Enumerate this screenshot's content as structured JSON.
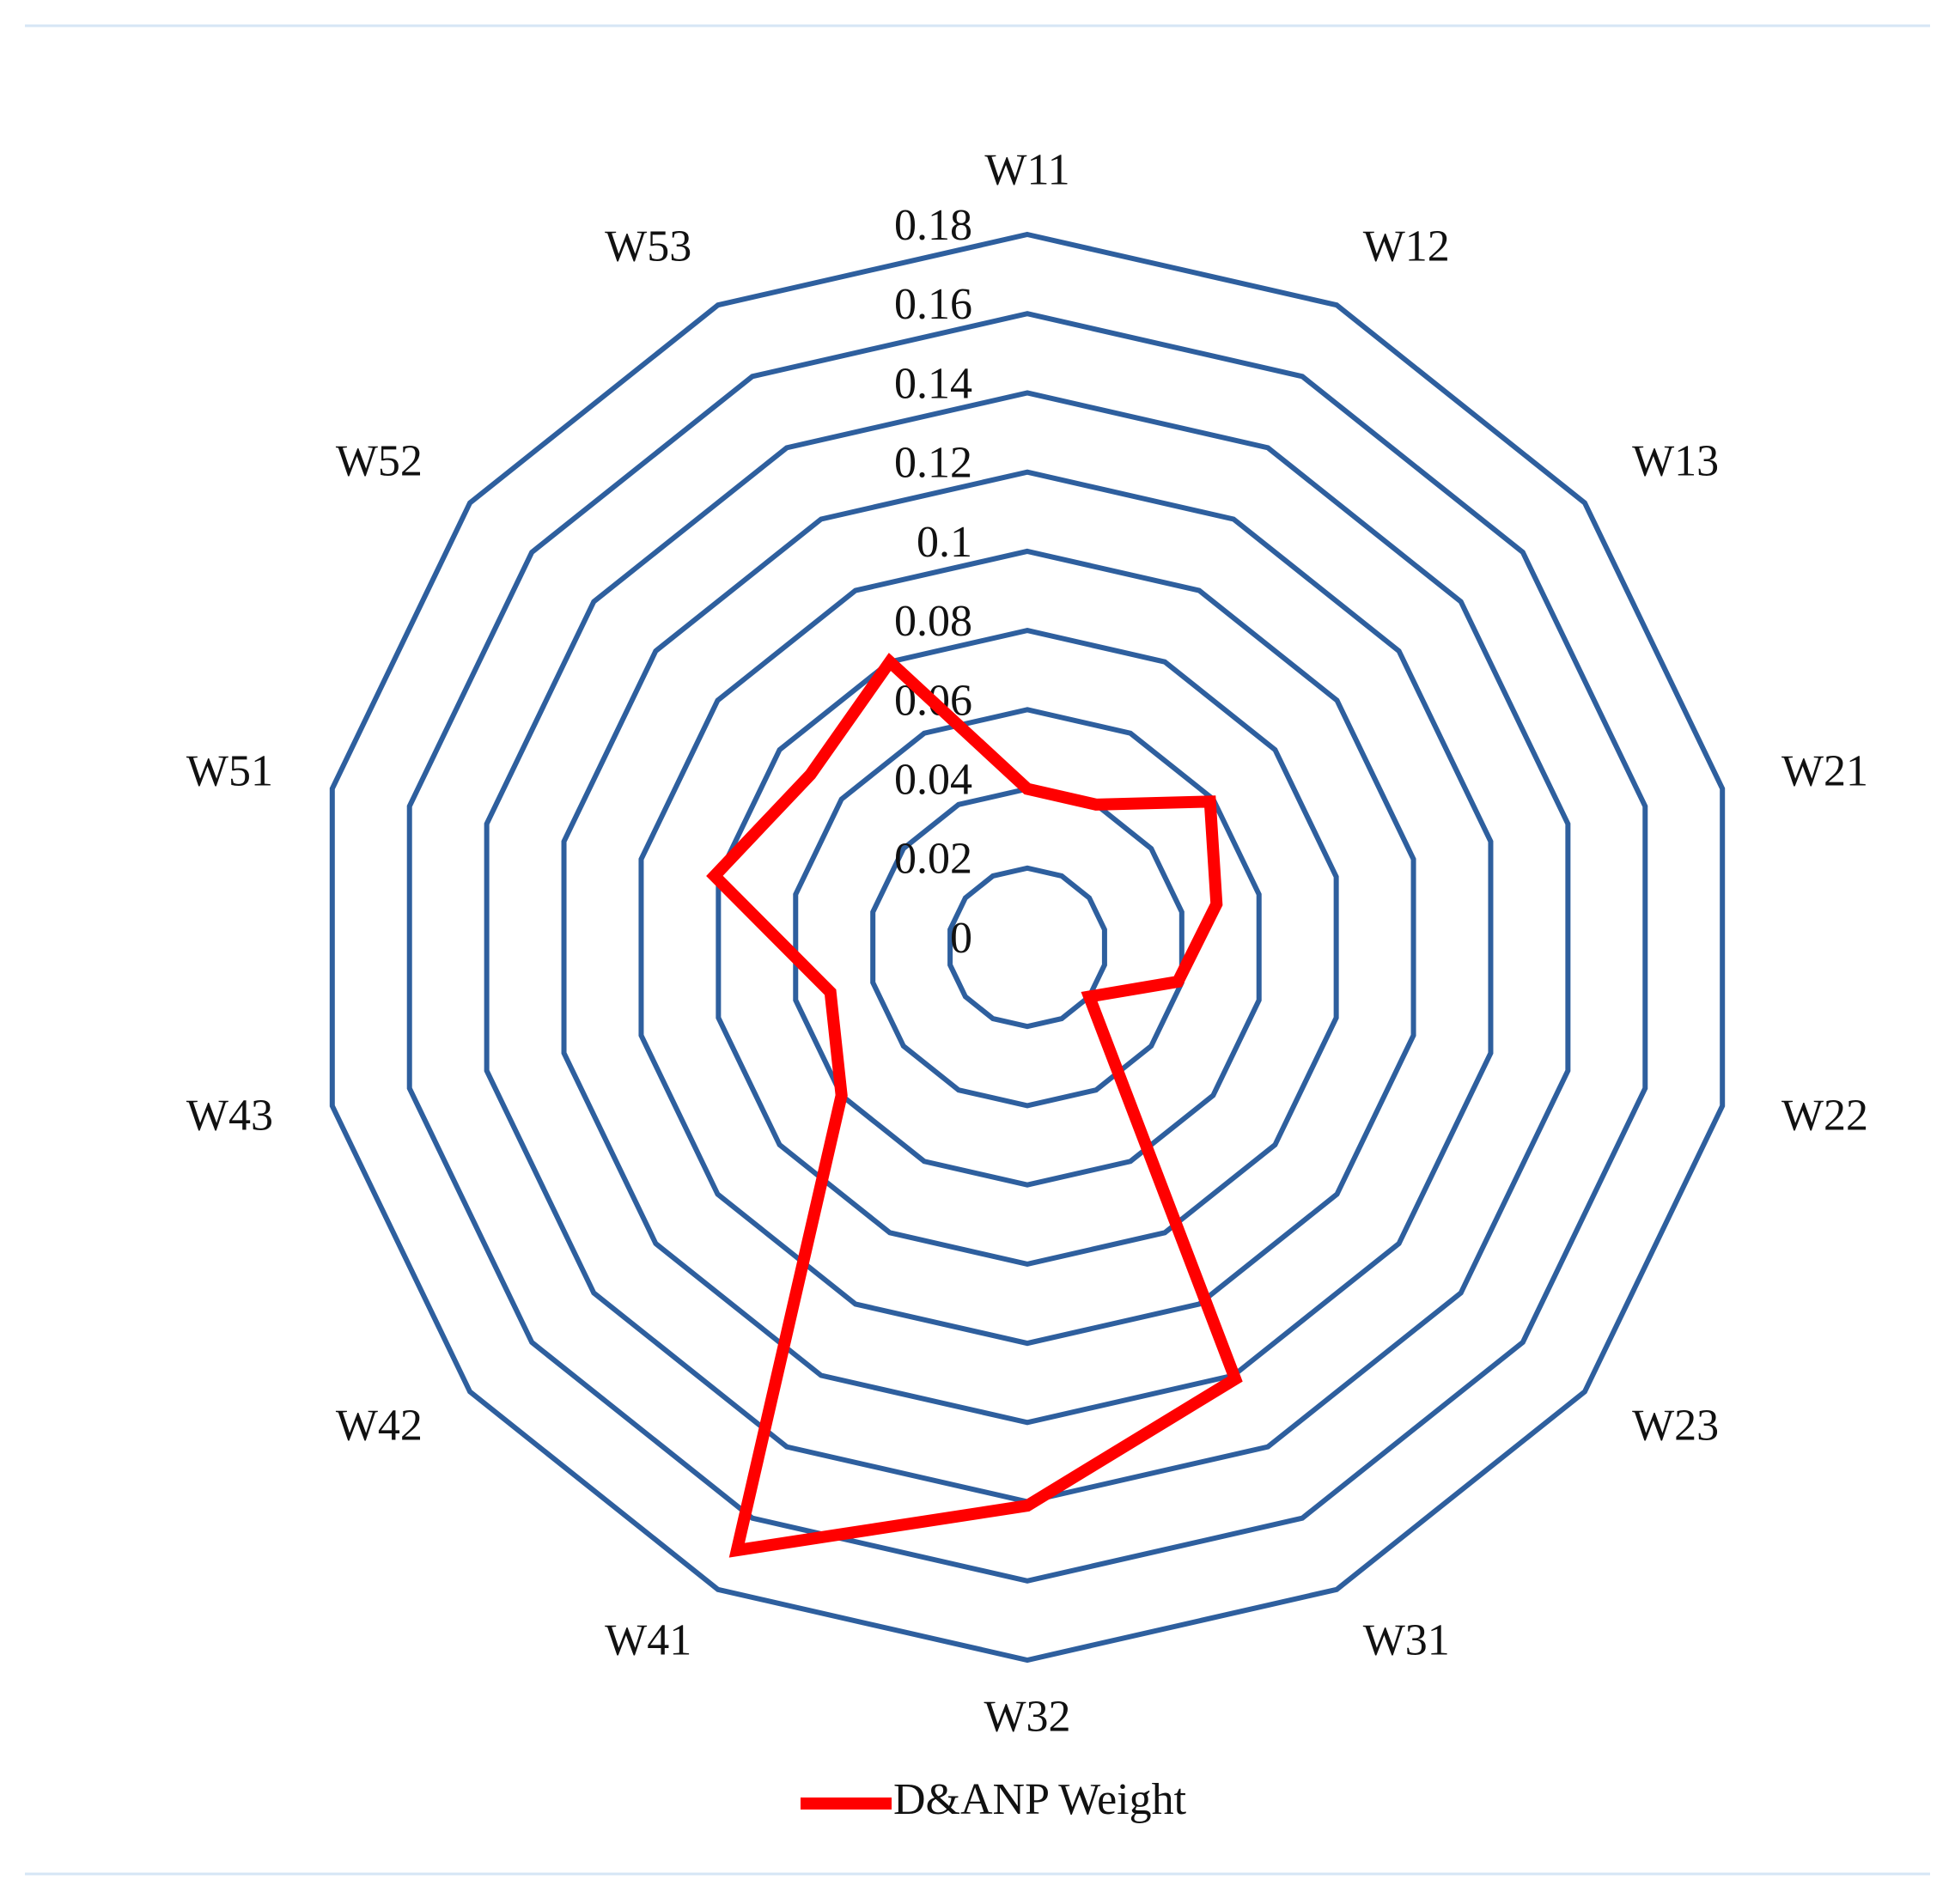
{
  "chart_data": {
    "type": "radar",
    "categories": [
      "W11",
      "W12",
      "W13",
      "W21",
      "W22",
      "W23",
      "W31",
      "W32",
      "W41",
      "W42",
      "W43",
      "W51",
      "W52",
      "W53"
    ],
    "series": [
      {
        "name": "D&ANP Weight",
        "color": "#ff0000",
        "values": [
          0.04,
          0.04,
          0.059,
          0.049,
          0.039,
          0.02,
          0.121,
          0.141,
          0.169,
          0.06,
          0.051,
          0.081,
          0.07,
          0.08
        ]
      }
    ],
    "ylim": [
      0,
      0.18
    ],
    "yticks": [
      0,
      0.02,
      0.04,
      0.06,
      0.08,
      0.1,
      0.12,
      0.14,
      0.16,
      0.18
    ],
    "grid": true,
    "grid_color": "#2e5f9e",
    "legend": "bottom"
  }
}
